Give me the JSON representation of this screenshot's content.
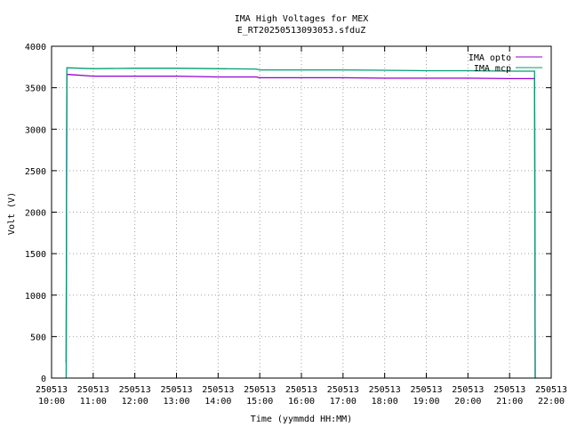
{
  "chart_data": {
    "type": "line",
    "title": "IMA High Voltages for MEX",
    "subtitle": "E_RT20250513093053.sfduZ",
    "xlabel": "Time (yymmdd HH:MM)",
    "ylabel": "Volt (V)",
    "xlim": [
      "250513 10:00",
      "250513 22:00"
    ],
    "ylim": [
      0,
      4000
    ],
    "grid": true,
    "legend_position": "top-right",
    "x_ticks": [
      {
        "date": "250513",
        "time": "10:00"
      },
      {
        "date": "250513",
        "time": "11:00"
      },
      {
        "date": "250513",
        "time": "12:00"
      },
      {
        "date": "250513",
        "time": "13:00"
      },
      {
        "date": "250513",
        "time": "14:00"
      },
      {
        "date": "250513",
        "time": "15:00"
      },
      {
        "date": "250513",
        "time": "16:00"
      },
      {
        "date": "250513",
        "time": "17:00"
      },
      {
        "date": "250513",
        "time": "18:00"
      },
      {
        "date": "250513",
        "time": "19:00"
      },
      {
        "date": "250513",
        "time": "20:00"
      },
      {
        "date": "250513",
        "time": "21:00"
      },
      {
        "date": "250513",
        "time": "22:00"
      }
    ],
    "y_ticks": [
      "0",
      "500",
      "1000",
      "1500",
      "2000",
      "2500",
      "3000",
      "3500",
      "4000"
    ],
    "series": [
      {
        "name": "IMA opto",
        "color": "#9400d3",
        "x": [
          "250513 10:20",
          "250513 10:21",
          "250513 10:22",
          "250513 10:24",
          "250513 11:00",
          "250513 12:00",
          "250513 13:00",
          "250513 14:00",
          "250513 14:55",
          "250513 15:00",
          "250513 16:00",
          "250513 17:00",
          "250513 18:00",
          "250513 19:00",
          "250513 20:00",
          "250513 21:00",
          "250513 21:35",
          "250513 21:36",
          "250513 21:37"
        ],
        "y": [
          200,
          200,
          3660,
          3660,
          3640,
          3640,
          3640,
          3630,
          3630,
          3620,
          3620,
          3620,
          3615,
          3615,
          3615,
          3610,
          3610,
          3610,
          0
        ]
      },
      {
        "name": "IMA mcp",
        "color": "#009e73",
        "x": [
          "250513 10:21",
          "250513 10:22",
          "250513 11:00",
          "250513 12:00",
          "250513 13:00",
          "250513 14:00",
          "250513 14:55",
          "250513 15:00",
          "250513 16:00",
          "250513 17:00",
          "250513 18:00",
          "250513 19:00",
          "250513 20:00",
          "250513 21:00",
          "250513 21:36",
          "250513 21:37"
        ],
        "y": [
          0,
          3740,
          3730,
          3735,
          3735,
          3730,
          3725,
          3715,
          3715,
          3715,
          3710,
          3705,
          3705,
          3700,
          3700,
          0
        ]
      }
    ]
  }
}
